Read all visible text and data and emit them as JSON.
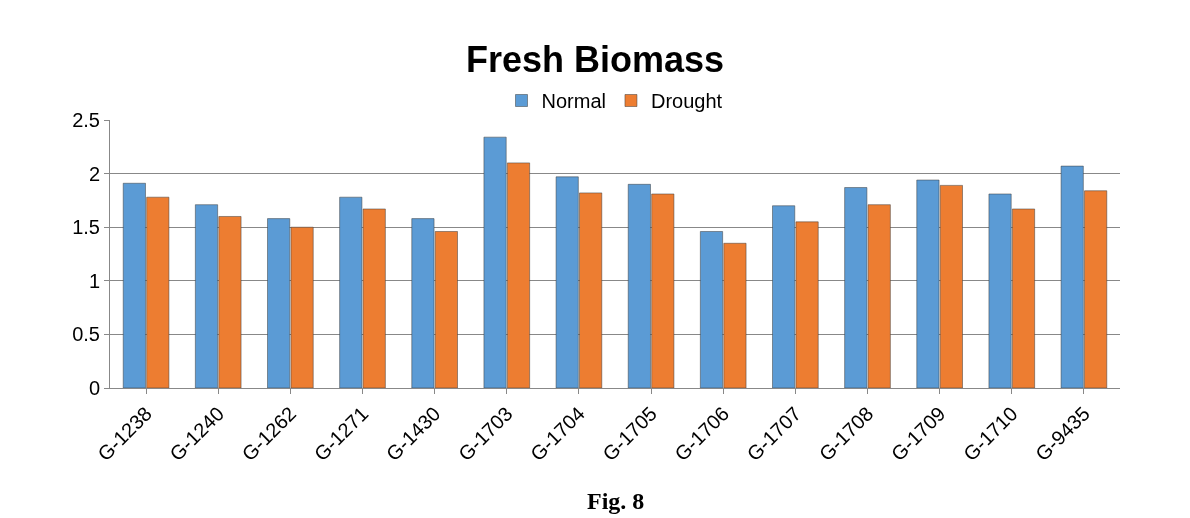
{
  "chart_data": {
    "type": "bar",
    "title": "Fresh Biomass",
    "categories": [
      "G-1238",
      "G-1240",
      "G-1262",
      "G-1271",
      "G-1430",
      "G-1703",
      "G-1704",
      "G-1705",
      "G-1706",
      "G-1707",
      "G-1708",
      "G-1709",
      "G-1710",
      "G-9435"
    ],
    "series": [
      {
        "name": "Normal",
        "color": "#5b9bd5",
        "values": [
          1.91,
          1.71,
          1.58,
          1.78,
          1.58,
          2.34,
          1.97,
          1.9,
          1.46,
          1.7,
          1.87,
          1.94,
          1.81,
          2.07
        ]
      },
      {
        "name": "Drought",
        "color": "#ed7d31",
        "values": [
          1.78,
          1.6,
          1.5,
          1.67,
          1.46,
          2.1,
          1.82,
          1.81,
          1.35,
          1.55,
          1.71,
          1.89,
          1.67,
          1.84
        ]
      }
    ],
    "ylim": [
      0,
      2.5
    ],
    "yticks": [
      0,
      0.5,
      1,
      1.5,
      2,
      2.5
    ],
    "grid": "y",
    "legend": "top",
    "annotations": [
      "Fig. 8"
    ]
  }
}
